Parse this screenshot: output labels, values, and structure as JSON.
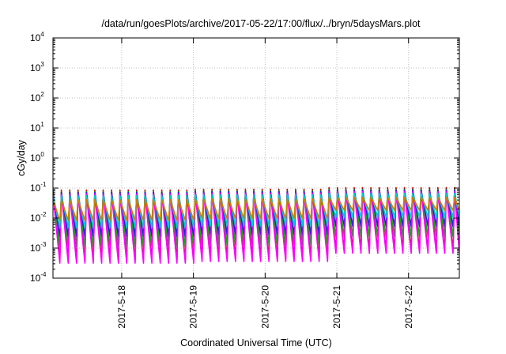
{
  "chart_data": {
    "type": "line",
    "title": "/data/run/goesPlots/archive/2017-05-22/17:00/flux/../bryn/5daysMars.plot",
    "xlabel": "Coordinated Universal Time (UTC)",
    "ylabel": "cGy/day",
    "x_range": [
      "2017-05-17T01:00",
      "2017-05-22T17:00"
    ],
    "x_ticks": [
      "2017-5-18",
      "2017-5-19",
      "2017-5-20",
      "2017-5-21",
      "2017-5-22"
    ],
    "y_scale": "log",
    "y_ticks": [
      {
        "base": "10",
        "exp": "-4"
      },
      {
        "base": "10",
        "exp": "-3"
      },
      {
        "base": "10",
        "exp": "-2"
      },
      {
        "base": "10",
        "exp": "-1"
      },
      {
        "base": "10",
        "exp": "0"
      },
      {
        "base": "10",
        "exp": "1"
      },
      {
        "base": "10",
        "exp": "2"
      },
      {
        "base": "10",
        "exp": "3"
      },
      {
        "base": "10",
        "exp": "4"
      }
    ],
    "ylim": [
      0.0001,
      10000
    ],
    "grid": true,
    "legend": "none",
    "colors": [
      "#cc0000",
      "#00b400",
      "#1e1ee6",
      "#ff00ff",
      "#00cccc",
      "#cc8000"
    ],
    "oscillation_period_hours": 2.8,
    "segments": [
      {
        "from": "2017-05-17T01:00",
        "to": "2017-05-19T00:00",
        "peak": 0.075,
        "trough": 0.0007
      },
      {
        "from": "2017-05-19T00:00",
        "to": "2017-05-20T20:00",
        "peak": 0.08,
        "trough": 0.0008
      },
      {
        "from": "2017-05-20T20:00",
        "to": "2017-05-22T17:00",
        "peak": 0.09,
        "trough": 0.0015
      }
    ],
    "series": [
      {
        "peak_factor": 1.15,
        "trough_factor": 0.55
      },
      {
        "peak_factor": 1.0,
        "trough_factor": 1.6
      },
      {
        "peak_factor": 0.95,
        "trough_factor": 3.5
      },
      {
        "peak_factor": 0.85,
        "trough_factor": 0.45
      },
      {
        "peak_factor": 0.75,
        "trough_factor": 7.0
      },
      {
        "peak_factor": 0.55,
        "trough_factor": 12.0
      }
    ]
  }
}
